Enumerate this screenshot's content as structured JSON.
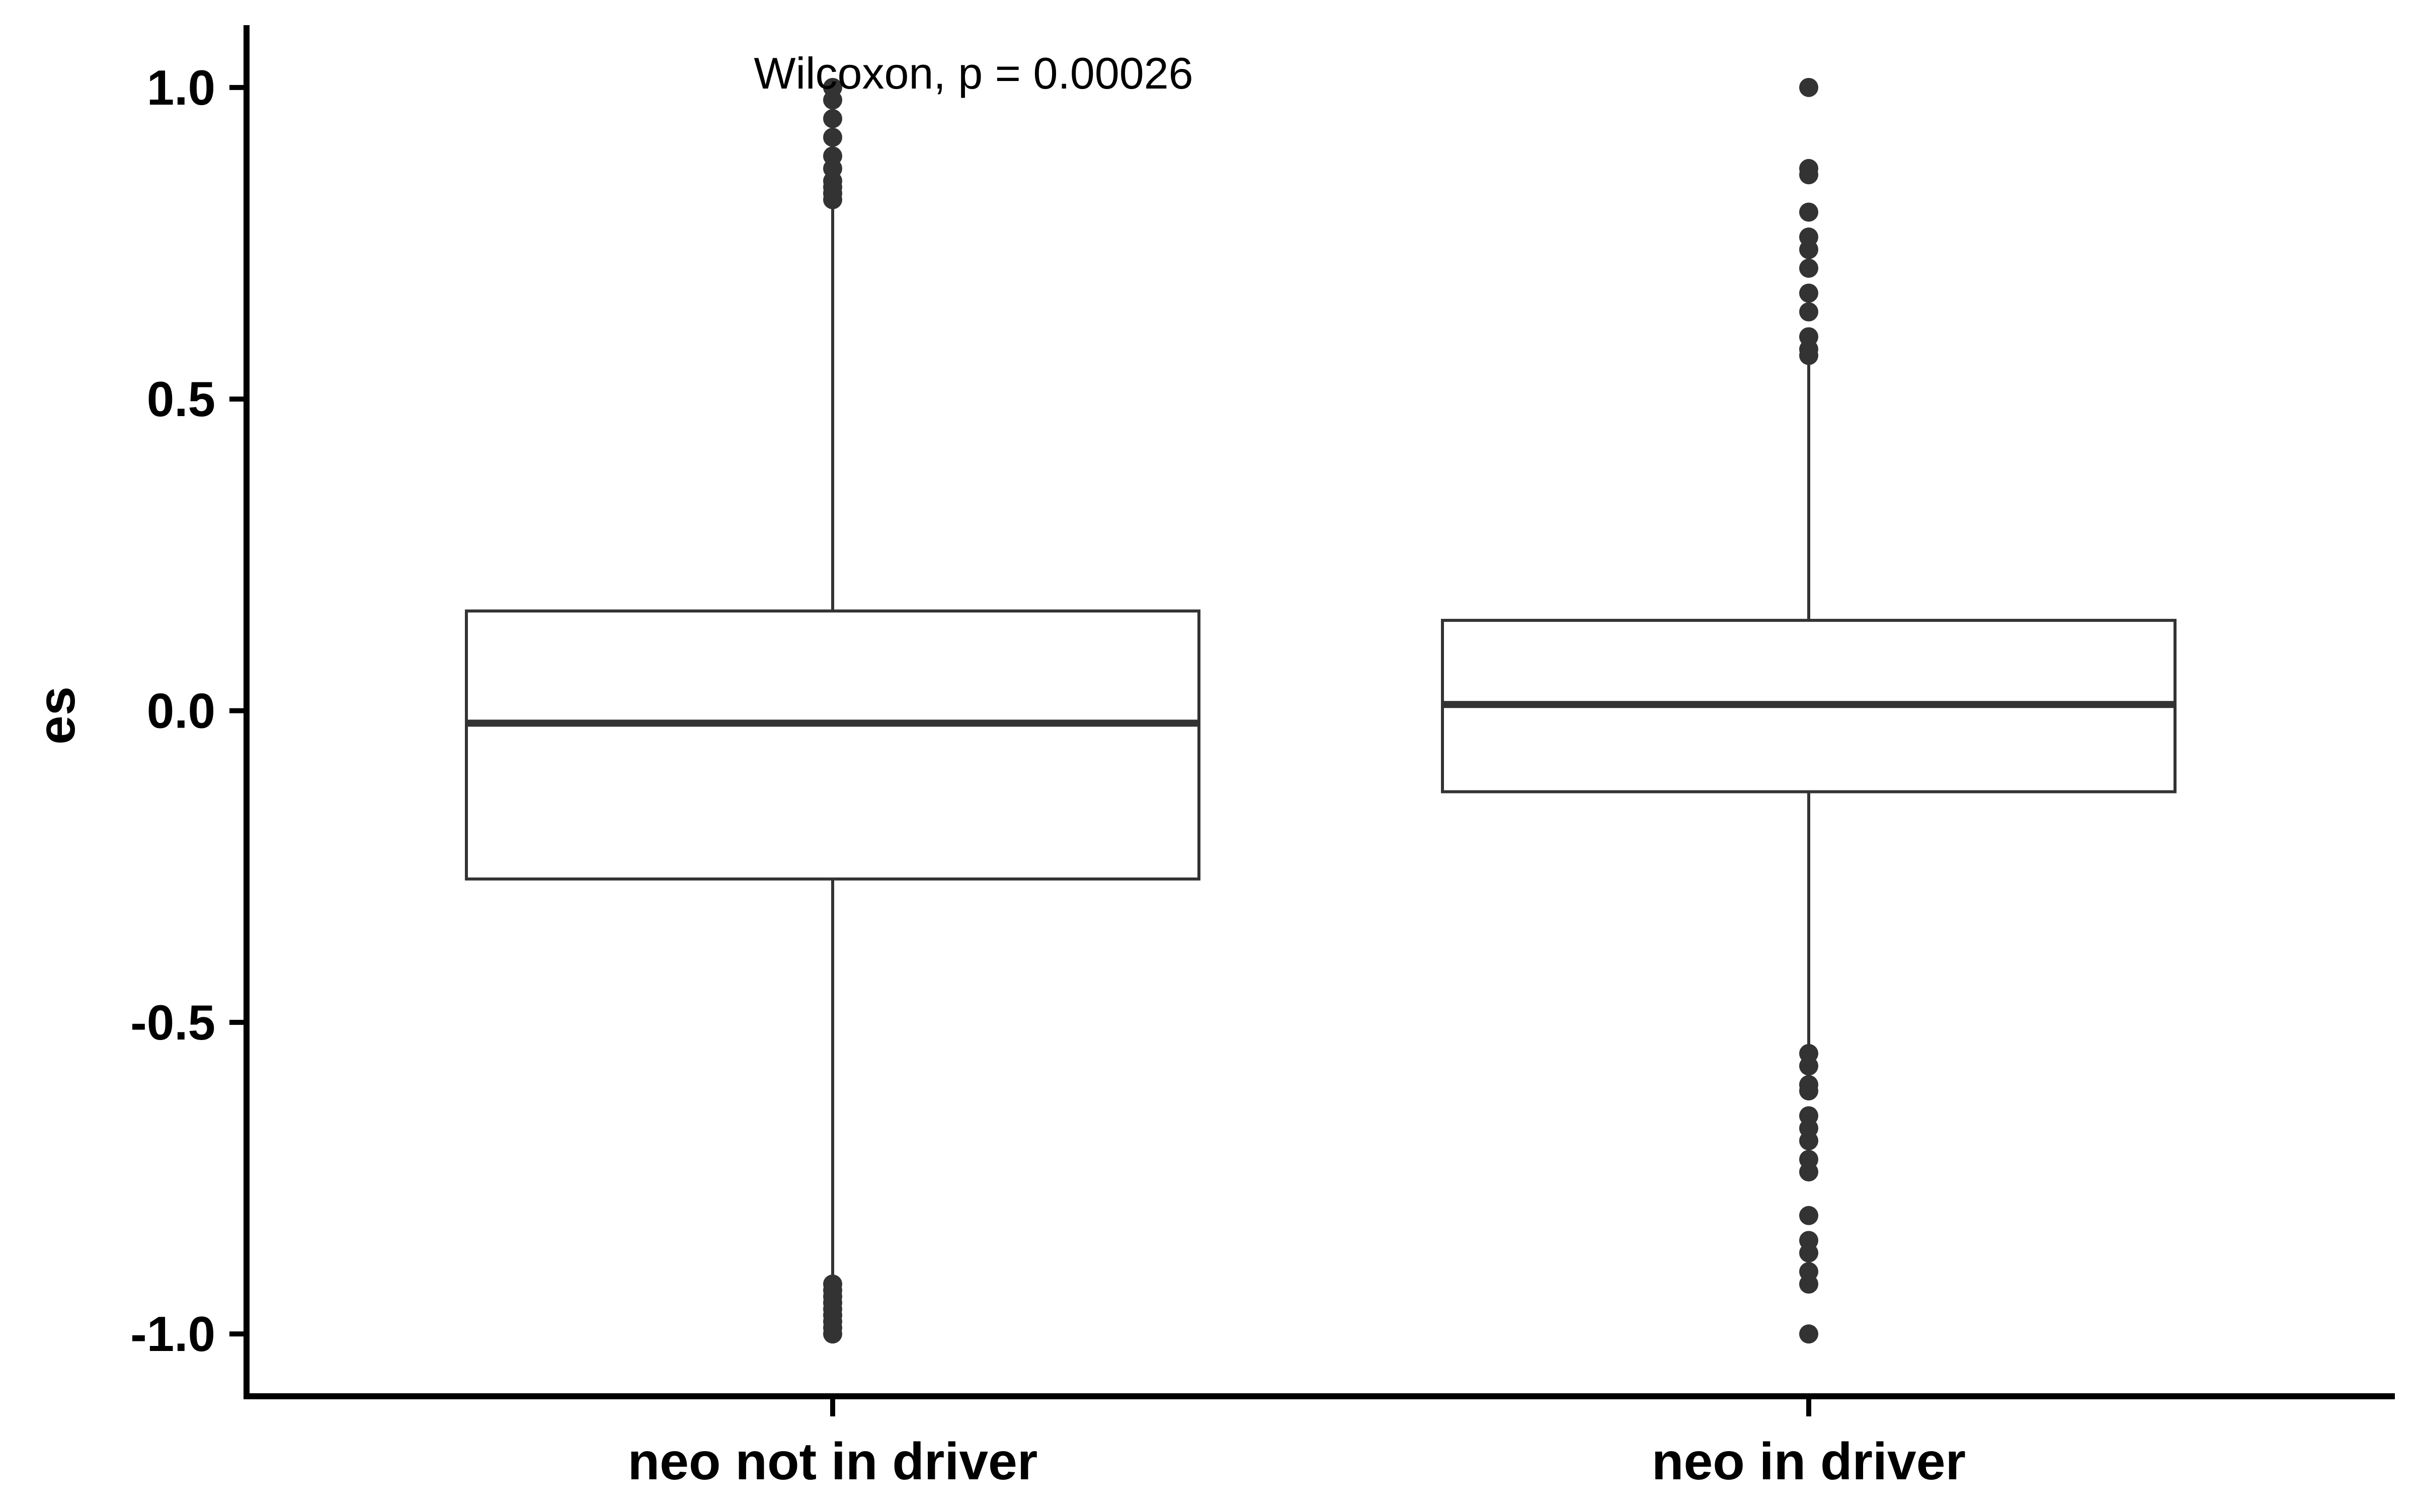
{
  "chart_data": {
    "type": "box",
    "title": "",
    "xlabel": "",
    "ylabel": "es",
    "ylim": [
      -1.1,
      1.1
    ],
    "yticks": [
      1.0,
      0.5,
      0.0,
      -0.5,
      -1.0
    ],
    "ytick_labels": [
      "1.0",
      "0.5",
      "0.0",
      "-0.5",
      "-1.0"
    ],
    "categories": [
      "neo not in driver",
      "neo in driver"
    ],
    "boxes": [
      {
        "category": "neo not in driver",
        "whisker_low": -0.91,
        "q1": -0.27,
        "median": -0.02,
        "q3": 0.16,
        "whisker_high": 0.81,
        "outliers": [
          1.0,
          0.98,
          0.95,
          0.92,
          0.89,
          0.87,
          0.85,
          0.84,
          0.83,
          0.82,
          -0.92,
          -0.93,
          -0.94,
          -0.95,
          -0.96,
          -0.97,
          -0.98,
          -0.99,
          -1.0
        ]
      },
      {
        "category": "neo in driver",
        "whisker_low": -0.55,
        "q1": -0.13,
        "median": 0.01,
        "q3": 0.145,
        "whisker_high": 0.56,
        "outliers": [
          1.0,
          0.87,
          0.86,
          0.8,
          0.76,
          0.74,
          0.71,
          0.67,
          0.64,
          0.6,
          0.58,
          0.57,
          -0.55,
          -0.57,
          -0.6,
          -0.61,
          -0.65,
          -0.67,
          -0.69,
          -0.72,
          -0.74,
          -0.81,
          -0.85,
          -0.87,
          -0.9,
          -0.92,
          -1.0
        ]
      }
    ],
    "annotation": "Wilcoxon, p = 0.00026",
    "grid": false,
    "legend": "none",
    "colors": {
      "box_fill": "#ffffff",
      "box_stroke": "#333333",
      "point": "#333333",
      "axis": "#000000"
    }
  }
}
